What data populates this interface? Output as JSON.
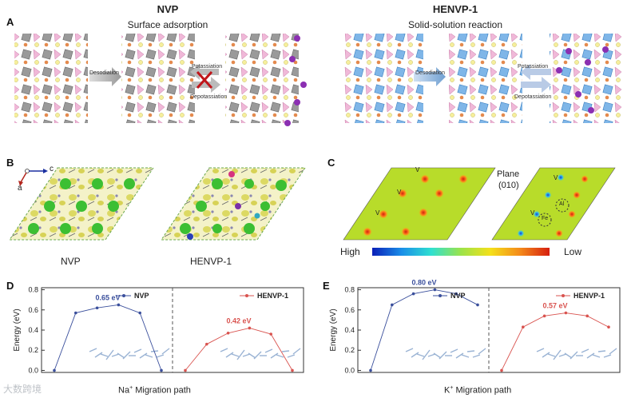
{
  "panel_labels": {
    "a": "A",
    "b": "B",
    "c": "C",
    "d": "D",
    "e": "E"
  },
  "panel_a": {
    "left_title": "NVP",
    "left_subtitle": "Surface adsorption",
    "left_arrow1": "Desodiation",
    "left_arrow2_top": "Potassiation",
    "left_arrow2_bottom": "Depotassiation",
    "right_title": "HENVP-1",
    "right_subtitle": "Solid-solution reaction",
    "right_arrow1": "Desodiation",
    "right_arrow2_top": "Potassiation",
    "right_arrow2_bottom": "Depotassiation"
  },
  "panel_b": {
    "axis_c": "c",
    "axis_a": "a",
    "label_left": "NVP",
    "label_right": "HENVP-1"
  },
  "panel_c": {
    "plane_line1": "Plane",
    "plane_line2": "(010)",
    "vac": "V",
    "al": "Al",
    "fe": "Fe",
    "high": "High",
    "low": "Low"
  },
  "watermark": "大数跨境",
  "chart_data": [
    {
      "type": "line",
      "panel": "D",
      "ylabel": "Energy (eV)",
      "xlabel_prefix": "Na",
      "xlabel_sup": "+",
      "xlabel_suffix": " Migration path",
      "ylim": [
        -0.02,
        0.82
      ],
      "yticks": [
        "0.0",
        "0.2",
        "0.4",
        "0.6",
        "0.8"
      ],
      "series": [
        {
          "name": "NVP",
          "color": "#3a4f9c",
          "x": [
            0,
            1,
            2,
            3,
            4,
            5
          ],
          "values": [
            0.0,
            0.57,
            0.62,
            0.65,
            0.57,
            0.0
          ],
          "barrier_label": "0.65 eV"
        },
        {
          "name": "HENVP-1",
          "color": "#d9534f",
          "x": [
            0,
            1,
            2,
            3,
            4,
            5
          ],
          "values": [
            0.0,
            0.26,
            0.37,
            0.42,
            0.36,
            0.0
          ],
          "barrier_label": "0.42 eV"
        }
      ]
    },
    {
      "type": "line",
      "panel": "E",
      "ylabel": "Energy (eV)",
      "xlabel_prefix": "K",
      "xlabel_sup": "+",
      "xlabel_suffix": " Migration path",
      "ylim": [
        -0.02,
        0.82
      ],
      "yticks": [
        "0.0",
        "0.2",
        "0.4",
        "0.6",
        "0.8"
      ],
      "series": [
        {
          "name": "NVP",
          "color": "#3a4f9c",
          "x": [
            0,
            1,
            2,
            3,
            4,
            5
          ],
          "values": [
            0.0,
            0.65,
            0.76,
            0.8,
            0.76,
            0.65
          ],
          "barrier_label": "0.80 eV"
        },
        {
          "name": "HENVP-1",
          "color": "#d9534f",
          "x": [
            0,
            1,
            2,
            3,
            4,
            5
          ],
          "values": [
            0.0,
            0.43,
            0.54,
            0.57,
            0.54,
            0.43
          ],
          "barrier_label": "0.57 eV"
        }
      ]
    }
  ]
}
